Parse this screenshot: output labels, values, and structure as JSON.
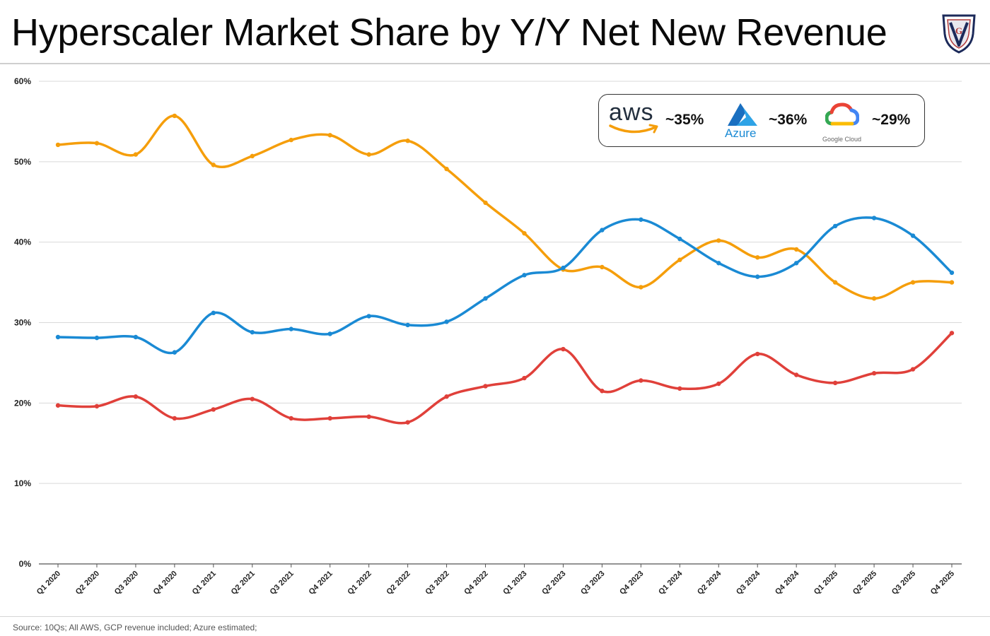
{
  "title": "Hyperscaler Market Share by Y/Y Net New Revenue",
  "source": "Source: 10Qs; All AWS, GCP revenue included; Azure estimated;",
  "logo": {
    "icon": "vg-shield-logo",
    "text": "VG"
  },
  "legend": {
    "aws": {
      "logo_text": "aws",
      "value": "~35%",
      "color": "#f59e0b"
    },
    "azure": {
      "logo_text": "Azure",
      "value": "~36%",
      "color": "#1a8ad4"
    },
    "gcp": {
      "logo_text": "Google Cloud",
      "value": "~29%",
      "color": "#e0403a"
    }
  },
  "chart_data": {
    "type": "line",
    "title": "Hyperscaler Market Share by Y/Y Net New Revenue",
    "xlabel": "",
    "ylabel": "",
    "ylim": [
      0,
      60
    ],
    "yticks": [
      0,
      10,
      20,
      30,
      40,
      50,
      60
    ],
    "ytick_labels": [
      "0%",
      "10%",
      "20%",
      "30%",
      "40%",
      "50%",
      "60%"
    ],
    "grid": true,
    "legend_position": "top-right",
    "categories": [
      "Q1 2020",
      "Q2 2020",
      "Q3 2020",
      "Q4 2020",
      "Q1 2021",
      "Q2 2021",
      "Q3 2021",
      "Q4 2021",
      "Q1 2022",
      "Q2 2022",
      "Q3 2022",
      "Q4 2022",
      "Q1 2023",
      "Q2 2023",
      "Q3 2023",
      "Q4 2023",
      "Q1 2024",
      "Q2 2024",
      "Q3 2024",
      "Q4 2024",
      "Q1 2025",
      "Q2 2025",
      "Q3 2025",
      "Q4 2025"
    ],
    "series": [
      {
        "name": "AWS",
        "color": "#f59e0b",
        "values": [
          52.1,
          52.3,
          50.9,
          55.7,
          49.6,
          50.7,
          52.7,
          53.3,
          50.9,
          52.6,
          49.1,
          44.9,
          41.1,
          36.6,
          36.9,
          34.4,
          37.8,
          40.2,
          38.1,
          39.1,
          35.0,
          33.0,
          35.0,
          35.0
        ]
      },
      {
        "name": "Azure",
        "color": "#1a8ad4",
        "values": [
          28.2,
          28.1,
          28.2,
          26.3,
          31.2,
          28.8,
          29.2,
          28.6,
          30.8,
          29.7,
          30.1,
          33.0,
          35.9,
          36.8,
          41.5,
          42.8,
          40.4,
          37.4,
          35.7,
          37.4,
          42.0,
          43.0,
          40.8,
          36.2
        ]
      },
      {
        "name": "GCP",
        "color": "#e0403a",
        "values": [
          19.7,
          19.6,
          20.8,
          18.1,
          19.2,
          20.5,
          18.1,
          18.1,
          18.3,
          17.6,
          20.8,
          22.1,
          23.1,
          26.7,
          21.5,
          22.8,
          21.8,
          22.4,
          26.1,
          23.5,
          22.5,
          23.7,
          24.2,
          28.7
        ]
      }
    ]
  }
}
